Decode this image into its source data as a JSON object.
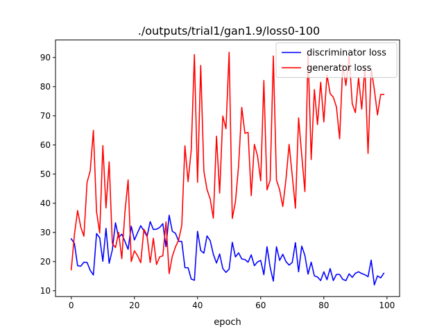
{
  "chart_data": {
    "type": "line",
    "title": "./outputs/trial1/gan1.9/loss0-100",
    "xlabel": "epoch",
    "ylabel": "",
    "xlim": [
      -5,
      104
    ],
    "ylim": [
      8,
      96
    ],
    "xticks": [
      0,
      20,
      40,
      60,
      80,
      100
    ],
    "yticks": [
      10,
      20,
      30,
      40,
      50,
      60,
      70,
      80,
      90
    ],
    "grid": false,
    "legend_position": "top-right",
    "x": [
      0,
      1,
      2,
      3,
      4,
      5,
      6,
      7,
      8,
      9,
      10,
      11,
      12,
      13,
      14,
      15,
      16,
      17,
      18,
      19,
      20,
      21,
      22,
      23,
      24,
      25,
      26,
      27,
      28,
      29,
      30,
      31,
      32,
      33,
      34,
      35,
      36,
      37,
      38,
      39,
      40,
      41,
      42,
      43,
      44,
      45,
      46,
      47,
      48,
      49,
      50,
      51,
      52,
      53,
      54,
      55,
      56,
      57,
      58,
      59,
      60,
      61,
      62,
      63,
      64,
      65,
      66,
      67,
      68,
      69,
      70,
      71,
      72,
      73,
      74,
      75,
      76,
      77,
      78,
      79,
      80,
      81,
      82,
      83,
      84,
      85,
      86,
      87,
      88,
      89,
      90,
      91,
      92,
      93,
      94,
      95,
      96,
      97,
      98,
      99
    ],
    "series": [
      {
        "name": "discriminator loss",
        "color": "#0000ff",
        "values": [
          27.8,
          26.2,
          18.6,
          18.4,
          19.8,
          19.7,
          17.0,
          15.4,
          29.6,
          28.2,
          20.1,
          31.4,
          19.4,
          24.0,
          33.3,
          28.3,
          29.4,
          26.9,
          24.2,
          32.1,
          27.4,
          29.9,
          32.3,
          30.6,
          28.6,
          33.7,
          31.0,
          31.1,
          31.7,
          33.0,
          25.1,
          35.9,
          30.4,
          29.7,
          27.0,
          26.9,
          17.9,
          17.9,
          14.0,
          13.6,
          30.4,
          23.8,
          22.9,
          28.8,
          27.2,
          22.5,
          19.5,
          22.6,
          17.6,
          16.3,
          17.4,
          26.6,
          21.6,
          23.0,
          20.9,
          20.7,
          19.8,
          22.3,
          18.6,
          19.9,
          20.4,
          15.5,
          25.1,
          18.0,
          13.3,
          25.1,
          20.4,
          22.5,
          20.0,
          18.8,
          19.7,
          26.5,
          16.5,
          25.3,
          22.1,
          15.7,
          19.8,
          15.1,
          14.7,
          13.5,
          16.5,
          13.8,
          17.6,
          13.5,
          15.6,
          15.6,
          13.9,
          13.5,
          15.8,
          14.6,
          16.0,
          16.5,
          15.9,
          15.5,
          14.8,
          20.5,
          12.0,
          15.1,
          14.4,
          16.0
        ]
      },
      {
        "name": "generator loss",
        "color": "#ff0000",
        "values": [
          17.2,
          29.3,
          37.5,
          31.9,
          28.7,
          47.2,
          51.1,
          65.0,
          37.1,
          29.8,
          59.8,
          38.4,
          54.2,
          26.2,
          24.8,
          30.0,
          21.0,
          37.0,
          48.0,
          20.0,
          23.7,
          22.0,
          19.6,
          31.1,
          29.0,
          19.7,
          28.0,
          19.0,
          21.6,
          22.0,
          33.6,
          15.9,
          21.8,
          25.0,
          27.4,
          32.4,
          59.7,
          47.4,
          58.3,
          91.0,
          47.2,
          87.3,
          51.0,
          44.7,
          41.5,
          34.9,
          63.0,
          43.5,
          69.9,
          65.6,
          91.8,
          34.8,
          40.5,
          52.9,
          72.9,
          64.0,
          64.3,
          42.6,
          60.2,
          56.2,
          47.7,
          82.1,
          44.6,
          47.9,
          90.5,
          48.0,
          44.6,
          38.9,
          48.1,
          60.2,
          49.5,
          38.3,
          69.3,
          56.5,
          44.0,
          91.8,
          55.0,
          79.0,
          67.0,
          81.5,
          67.9,
          84.1,
          77.6,
          76.4,
          73.0,
          62.1,
          87.5,
          80.4,
          91.1,
          74.1,
          71.1,
          83.1,
          72.3,
          86.7,
          57.1,
          86.2,
          79.0,
          70.3,
          77.3,
          77.3
        ]
      }
    ]
  }
}
